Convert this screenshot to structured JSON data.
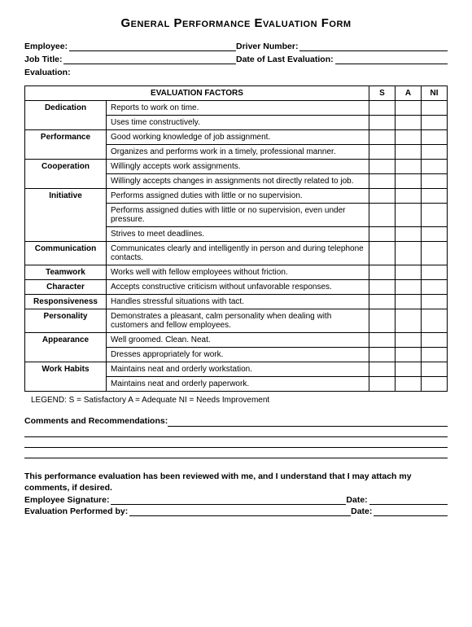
{
  "title": "General Performance Evaluation Form",
  "header_fields": {
    "employee": "Employee:",
    "driver_number": "Driver Number:",
    "job_title": "Job Title:",
    "date_last_eval": "Date of Last Evaluation:",
    "evaluation": "Evaluation:"
  },
  "table": {
    "header_main": "EVALUATION FACTORS",
    "header_ratings": [
      "S",
      "A",
      "NI"
    ],
    "factors": [
      {
        "name": "Dedication",
        "criteria": [
          "Reports to work on time.",
          "Uses time constructively."
        ]
      },
      {
        "name": "Performance",
        "criteria": [
          "Good working knowledge of job assignment.",
          "Organizes and performs work in a timely, professional manner."
        ]
      },
      {
        "name": "Cooperation",
        "criteria": [
          "Willingly accepts work assignments.",
          "Willingly accepts changes in assignments not directly related to job."
        ]
      },
      {
        "name": "Initiative",
        "criteria": [
          "Performs assigned duties with little or no supervision.",
          "Performs assigned duties with little or no supervision, even under pressure.",
          "Strives to meet deadlines."
        ]
      },
      {
        "name": "Communication",
        "criteria": [
          "Communicates clearly and intelligently in person and during telephone contacts."
        ]
      },
      {
        "name": "Teamwork",
        "criteria": [
          "Works well with fellow employees without friction."
        ]
      },
      {
        "name": "Character",
        "criteria": [
          "Accepts constructive criticism without unfavorable responses."
        ]
      },
      {
        "name": "Responsiveness",
        "criteria": [
          "Handles stressful situations with tact."
        ]
      },
      {
        "name": "Personality",
        "criteria": [
          "Demonstrates a pleasant, calm personality when dealing with customers and fellow employees."
        ]
      },
      {
        "name": "Appearance",
        "criteria": [
          "Well groomed.  Clean.  Neat.",
          "Dresses appropriately for work."
        ]
      },
      {
        "name": "Work Habits",
        "criteria": [
          "Maintains neat and orderly workstation.",
          "Maintains neat and orderly paperwork."
        ]
      }
    ]
  },
  "legend": "LEGEND:  S = Satisfactory     A = Adequate    NI = Needs Improvement",
  "comments_label": "Comments and Recommendations:",
  "footer_statement": "This performance evaluation has been reviewed with me, and I understand that I may attach my comments, if desired.",
  "sig": {
    "employee": "Employee Signature:",
    "date1": "Date:",
    "evaluator": "Evaluation Performed by:",
    "date2": "Date:"
  }
}
